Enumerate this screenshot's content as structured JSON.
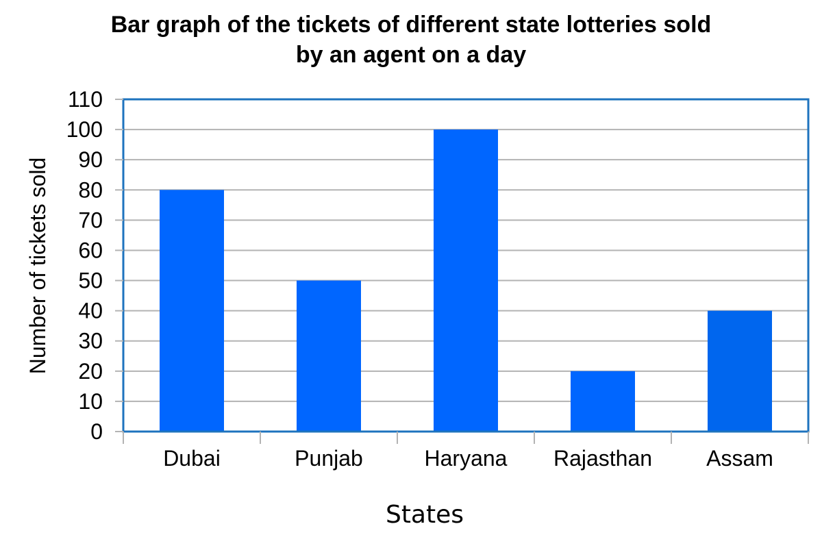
{
  "chart_data": {
    "type": "bar",
    "title_lines": [
      "Bar graph of the tickets of different state lotteries sold",
      "by an agent on a day"
    ],
    "xlabel": "States",
    "ylabel": "Number of tickets sold",
    "categories": [
      "Dubai",
      "Punjab",
      "Haryana",
      "Rajasthan",
      "Assam"
    ],
    "values": [
      80,
      50,
      100,
      20,
      40
    ],
    "ylim": [
      0,
      110
    ],
    "yticks": [
      0,
      10,
      20,
      30,
      40,
      50,
      60,
      70,
      80,
      90,
      100,
      110
    ],
    "grid": true,
    "legend": "none",
    "colors": {
      "bar": "#0066ff",
      "bar_last": "#0066ee",
      "plot_border": "#1e73be",
      "grid": "#b3b3b3",
      "tick": "#b3b3b3"
    }
  }
}
